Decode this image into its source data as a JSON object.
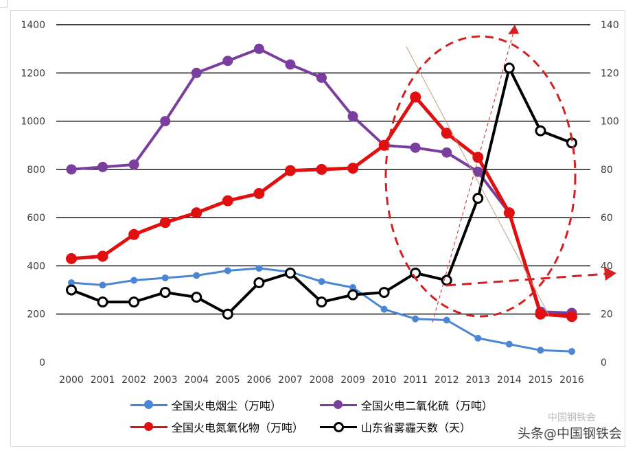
{
  "chart_data": {
    "type": "line",
    "x": [
      "2000",
      "2001",
      "2002",
      "2003",
      "2004",
      "2005",
      "2006",
      "2007",
      "2008",
      "2009",
      "2010",
      "2011",
      "2012",
      "2013",
      "2014",
      "2015",
      "2016"
    ],
    "ylim_left": [
      0,
      1400
    ],
    "yticks_left": [
      "0",
      "200",
      "400",
      "600",
      "800",
      "1000",
      "1200",
      "1400"
    ],
    "ylim_right": [
      0,
      140
    ],
    "yticks_right": [
      "0",
      "20",
      "40",
      "60",
      "80",
      "100",
      "120",
      "140"
    ],
    "grid": "horizontal",
    "legend_position": "bottom",
    "series": [
      {
        "name": "全国火电烟尘（万吨）",
        "axis": "left",
        "color": "#4a86d4",
        "values": [
          330,
          320,
          340,
          350,
          360,
          380,
          390,
          375,
          335,
          310,
          220,
          180,
          175,
          100,
          75,
          50,
          45
        ]
      },
      {
        "name": "全国火电二氧化硫（万吨）",
        "axis": "left",
        "color": "#7a3f9e",
        "values": [
          800,
          810,
          820,
          1000,
          1200,
          1250,
          1300,
          1235,
          1180,
          1020,
          900,
          890,
          870,
          790,
          620,
          210,
          205
        ]
      },
      {
        "name": "全国火电氮氧化物（万吨）",
        "axis": "left",
        "color": "#e01010",
        "values": [
          430,
          440,
          530,
          580,
          620,
          670,
          700,
          795,
          800,
          805,
          900,
          1100,
          950,
          850,
          620,
          200,
          190
        ]
      },
      {
        "name": "山东省雾霾天数（天）",
        "axis": "right",
        "color": "#000000",
        "values": [
          30,
          25,
          25,
          29,
          27,
          20,
          33,
          37,
          25,
          28,
          29,
          37,
          34,
          68,
          122,
          96,
          91
        ]
      }
    ]
  },
  "watermark": {
    "text": "头条@中国钢铁会",
    "sub": "中国钢铁会"
  }
}
